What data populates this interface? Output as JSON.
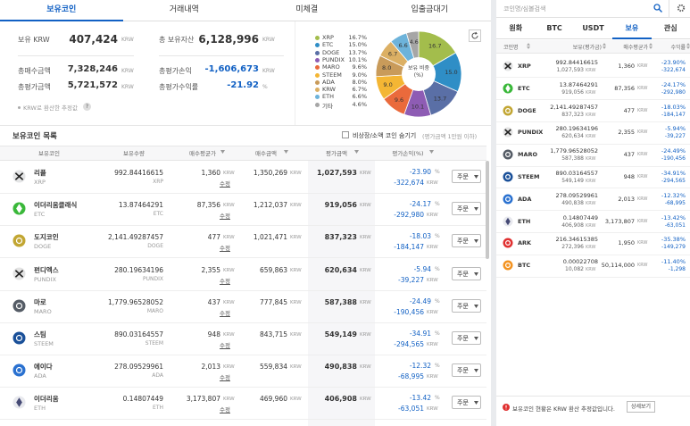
{
  "units": {
    "krw": "KRW",
    "pct": "%"
  },
  "tabs": [
    "보유코인",
    "거래내역",
    "미체결",
    "입출금대기"
  ],
  "summary": {
    "krw_label": "보유 KRW",
    "krw": "407,424",
    "total_assets_label": "총 보유자산",
    "total_assets": "6,128,996",
    "buy_total_label": "총매수금액",
    "buy_total": "7,328,246",
    "pnl_label": "총평가손익",
    "pnl": "-1,606,673",
    "eval_total_label": "총평가금액",
    "eval_total": "5,721,572",
    "return_label": "총평가수익률",
    "return": "-21.92",
    "note": "KRW로 환산한 추정값",
    "help": "?"
  },
  "chart_data": {
    "type": "pie",
    "title": "보유 비중 (%)",
    "categories": [
      "XRP",
      "ETC",
      "DOGE",
      "PUNDIX",
      "MARO",
      "STEEM",
      "ADA",
      "KRW",
      "ETH",
      "기타"
    ],
    "values": [
      16.7,
      15.0,
      13.7,
      10.1,
      9.6,
      9.0,
      8.0,
      6.7,
      6.6,
      4.6
    ],
    "value_labels": [
      "16.7",
      "15.0",
      "13.7",
      "10.1",
      "9.6",
      "9.0",
      "8.0",
      "6.7",
      "6.6",
      "4.6"
    ],
    "legend_labels": [
      "16.7%",
      "15.0%",
      "13.7%",
      "10.1%",
      "9.6%",
      "9.0%",
      "8.0%",
      "6.7%",
      "6.6%",
      "4.6%"
    ],
    "colors": [
      "#a3bd4c",
      "#2f8ec6",
      "#5a6fa6",
      "#8e5cb4",
      "#ea6a3c",
      "#f4b634",
      "#c99b5a",
      "#dcb064",
      "#6db3da",
      "#a6a6a6"
    ]
  },
  "holdings": {
    "title": "보유코인 목록",
    "hide_label": "비상장/소액 코인 숨기기",
    "hide_note": "(평가금액 1만원 이하)",
    "columns": [
      "보유코인",
      "보유수량",
      "매수평균가",
      "매수금액",
      "평가금액",
      "평가손익(%)"
    ],
    "edit": "수정",
    "order": "주문",
    "rows": [
      {
        "name": "리플",
        "symbol": "XRP",
        "qty": "992.84416615",
        "avg": "1,360",
        "buy": "1,350,269",
        "eval": "1,027,593",
        "pct": "-23.90",
        "pnl": "-322,674"
      },
      {
        "name": "이더리움클래식",
        "symbol": "ETC",
        "qty": "13.87464291",
        "avg": "87,356",
        "buy": "1,212,037",
        "eval": "919,056",
        "pct": "-24.17",
        "pnl": "-292,980"
      },
      {
        "name": "도지코인",
        "symbol": "DOGE",
        "qty": "2,141.49287457",
        "avg": "477",
        "buy": "1,021,471",
        "eval": "837,323",
        "pct": "-18.03",
        "pnl": "-184,147"
      },
      {
        "name": "펀디엑스",
        "symbol": "PUNDIX",
        "qty": "280.19634196",
        "avg": "2,355",
        "buy": "659,863",
        "eval": "620,634",
        "pct": "-5.94",
        "pnl": "-39,227"
      },
      {
        "name": "마로",
        "symbol": "MARO",
        "qty": "1,779.96528052",
        "avg": "437",
        "buy": "777,845",
        "eval": "587,388",
        "pct": "-24.49",
        "pnl": "-190,456"
      },
      {
        "name": "스팀",
        "symbol": "STEEM",
        "qty": "890.03164557",
        "avg": "948",
        "buy": "843,715",
        "eval": "549,149",
        "pct": "-34.91",
        "pnl": "-294,565"
      },
      {
        "name": "에이다",
        "symbol": "ADA",
        "qty": "278.09529961",
        "avg": "2,013",
        "buy": "559,834",
        "eval": "490,838",
        "pct": "-12.32",
        "pnl": "-68,995"
      },
      {
        "name": "이더리움",
        "symbol": "ETH",
        "qty": "0.14807449",
        "avg": "3,173,807",
        "buy": "469,960",
        "eval": "406,908",
        "pct": "-13.42",
        "pnl": "-63,051"
      }
    ]
  },
  "market": {
    "search_placeholder": "코인명/심볼검색",
    "tabs": [
      "원화",
      "BTC",
      "USDT",
      "보유",
      "관심"
    ],
    "columns": [
      "코인명",
      "보유(평가금)",
      "매수평균가",
      "수익률"
    ],
    "rows": [
      {
        "symbol": "XRP",
        "qty": "992.84416615",
        "eval": "1,027,593",
        "avg": "1,360",
        "pct": "-23.90%",
        "pnl": "-322,674"
      },
      {
        "symbol": "ETC",
        "qty": "13.87464291",
        "eval": "919,056",
        "avg": "87,356",
        "pct": "-24.17%",
        "pnl": "-292,980"
      },
      {
        "symbol": "DOGE",
        "qty": "2,141.49287457",
        "eval": "837,323",
        "avg": "477",
        "pct": "-18.03%",
        "pnl": "-184,147"
      },
      {
        "symbol": "PUNDIX",
        "qty": "280.19634196",
        "eval": "620,634",
        "avg": "2,355",
        "pct": "-5.94%",
        "pnl": "-39,227"
      },
      {
        "symbol": "MARO",
        "qty": "1,779.96528052",
        "eval": "587,388",
        "avg": "437",
        "pct": "-24.49%",
        "pnl": "-190,456"
      },
      {
        "symbol": "STEEM",
        "qty": "890.03164557",
        "eval": "549,149",
        "avg": "948",
        "pct": "-34.91%",
        "pnl": "-294,565"
      },
      {
        "symbol": "ADA",
        "qty": "278.09529961",
        "eval": "490,838",
        "avg": "2,013",
        "pct": "-12.32%",
        "pnl": "-68,995"
      },
      {
        "symbol": "ETH",
        "qty": "0.14807449",
        "eval": "406,908",
        "avg": "3,173,807",
        "pct": "-13.42%",
        "pnl": "-63,051"
      },
      {
        "symbol": "ARK",
        "qty": "216.34615385",
        "eval": "272,396",
        "avg": "1,950",
        "pct": "-35.38%",
        "pnl": "-149,279"
      },
      {
        "symbol": "BTC",
        "qty": "0.00022708",
        "eval": "10,082",
        "avg": "50,114,000",
        "pct": "-11.40%",
        "pnl": "-1,298"
      }
    ],
    "notice": "보유코인 현황은 KRW 환산 추정값입니다.",
    "detail": "상세보기"
  }
}
